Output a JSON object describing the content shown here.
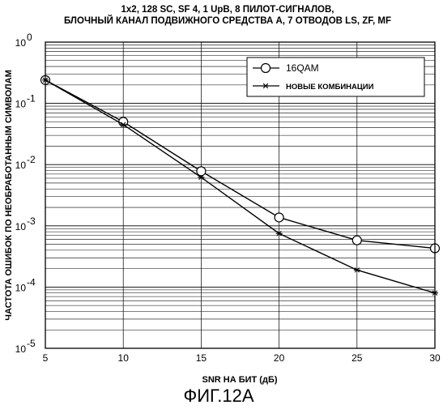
{
  "chart_data": {
    "type": "line",
    "title_line1": "1x2, 128 SC, SF 4, 1 UpB, 8 ПИЛОТ-СИГНАЛОВ,",
    "title_line2": "БЛОЧНЫЙ КАНАЛ ПОДВИЖНОГО СРЕДСТВА A, 7 ОТВОДОВ LS, ZF, MF",
    "xlabel": "SNR НА БИТ (дБ)",
    "ylabel": "ЧАСТОТА ОШИБОК ПО НЕОБРАБОТАННЫМ СИМВОЛАМ",
    "x_scale": "linear",
    "y_scale": "log",
    "xlim": [
      5,
      30
    ],
    "ylim": [
      1e-05,
      1
    ],
    "x_ticks": [
      "5",
      "10",
      "15",
      "20",
      "25",
      "30"
    ],
    "y_ticks": [
      {
        "base": "10",
        "exp": "0"
      },
      {
        "base": "10",
        "exp": "-1"
      },
      {
        "base": "10",
        "exp": "-2"
      },
      {
        "base": "10",
        "exp": "-3"
      },
      {
        "base": "10",
        "exp": "-4"
      },
      {
        "base": "10",
        "exp": "-5"
      }
    ],
    "grid": true,
    "legend_position": "top-right",
    "series": [
      {
        "name": "16QAM",
        "marker": "circle",
        "x": [
          5,
          10,
          15,
          20,
          25,
          30
        ],
        "y": [
          0.24,
          0.05,
          0.0078,
          0.00137,
          0.00058,
          0.00043
        ]
      },
      {
        "name": "НОВЫЕ КОМБИНАЦИИ",
        "marker": "star",
        "x": [
          5,
          10,
          15,
          20,
          25,
          30
        ],
        "y": [
          0.24,
          0.045,
          0.0062,
          0.00075,
          0.00019,
          8e-05
        ]
      }
    ]
  },
  "caption": "ФИГ.12А"
}
